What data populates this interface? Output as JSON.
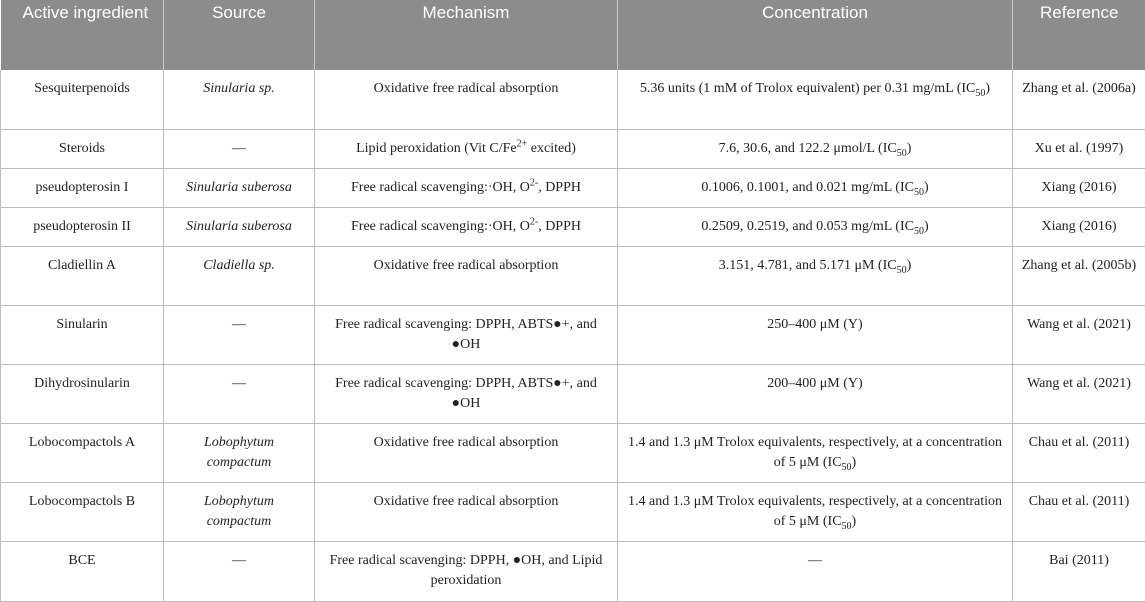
{
  "table": {
    "headers": [
      "Active ingredient",
      "Source",
      "Mechanism",
      "Concentration",
      "Reference"
    ],
    "rows": [
      {
        "ingredient": "Sesquiterpenoids",
        "source": "Sinularia sp.",
        "mechanism": "Oxidative free radical absorption",
        "concentration_text": "5.36 units (1 mM of Trolox equivalent) per 0.31 mg/mL (IC",
        "concentration_sub": "50",
        "concentration_end": ")",
        "reference": "Zhang et al. (2006a)"
      },
      {
        "ingredient": "Steroids",
        "source": "—",
        "mechanism_text": "Lipid peroxidation (Vit C/Fe",
        "mechanism_sup": "2+",
        "mechanism_end": " excited)",
        "concentration_text": "7.6, 30.6, and 122.2 μmol/L (IC",
        "concentration_sub": "50",
        "concentration_end": ")",
        "reference": "Xu et al. (1997)"
      },
      {
        "ingredient": "pseudopterosin I",
        "source": "Sinularia suberosa",
        "mechanism_text": "Free radical scavenging:·OH, O",
        "mechanism_sup": "2-",
        "mechanism_end": ", DPPH",
        "concentration_text": "0.1006, 0.1001, and 0.021 mg/mL (IC",
        "concentration_sub": "50",
        "concentration_end": ")",
        "reference": "Xiang (2016)"
      },
      {
        "ingredient": "pseudopterosin II",
        "source": "Sinularia suberosa",
        "mechanism_text": "Free radical scavenging:·OH, O",
        "mechanism_sup": "2-",
        "mechanism_end": ", DPPH",
        "concentration_text": "0.2509, 0.2519, and 0.053 mg/mL (IC",
        "concentration_sub": "50",
        "concentration_end": ")",
        "reference": "Xiang (2016)"
      },
      {
        "ingredient": "Cladiellin A",
        "source": "Cladiella sp.",
        "mechanism": "Oxidative free radical absorption",
        "concentration_text": "3.151, 4.781, and 5.171 μM (IC",
        "concentration_sub": "50",
        "concentration_end": ")",
        "reference": "Zhang et al. (2005b)"
      },
      {
        "ingredient": "Sinularin",
        "source": "—",
        "mechanism": "Free radical scavenging: DPPH, ABTS●+, and ●OH",
        "concentration": "250–400 μM (Y)",
        "reference": "Wang et al. (2021)"
      },
      {
        "ingredient": "Dihydrosinularin",
        "source": "—",
        "mechanism": "Free radical scavenging: DPPH, ABTS●+, and ●OH",
        "concentration": "200–400 μM (Y)",
        "reference": "Wang et al. (2021)"
      },
      {
        "ingredient": "Lobocompactols A",
        "source": "Lobophytum compactum",
        "mechanism": "Oxidative free radical absorption",
        "concentration_text": "1.4 and 1.3 μM Trolox equivalents, respectively, at a concentration of 5 μM (IC",
        "concentration_sub": "50",
        "concentration_end": ")",
        "reference": "Chau et al. (2011)"
      },
      {
        "ingredient": "Lobocompactols B",
        "source": "Lobophytum compactum",
        "mechanism": "Oxidative free radical absorption",
        "concentration_text": "1.4 and 1.3 μM Trolox equivalents, respectively, at a concentration of 5 μM (IC",
        "concentration_sub": "50",
        "concentration_end": ")",
        "reference": "Chau et al. (2011)"
      },
      {
        "ingredient": "BCE",
        "source": "—",
        "mechanism": "Free radical scavenging: DPPH, ●OH, and Lipid peroxidation",
        "concentration": "—",
        "reference": "Bai (2011)"
      }
    ]
  }
}
